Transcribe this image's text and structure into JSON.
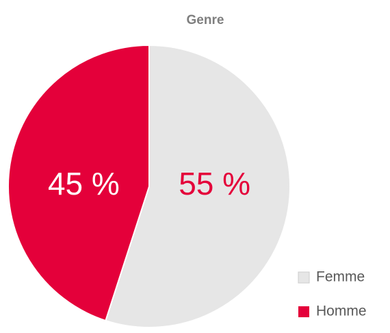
{
  "chart_data": {
    "type": "pie",
    "title": "Genre",
    "categories": [
      "Femme",
      "Homme"
    ],
    "values": [
      55,
      45
    ],
    "value_labels": [
      "55 %",
      "45 %"
    ],
    "colors": [
      "#e6e6e6",
      "#e4003a"
    ],
    "label_colors": [
      "#e4003a",
      "#ffffff"
    ],
    "legend": "bottom-right"
  }
}
